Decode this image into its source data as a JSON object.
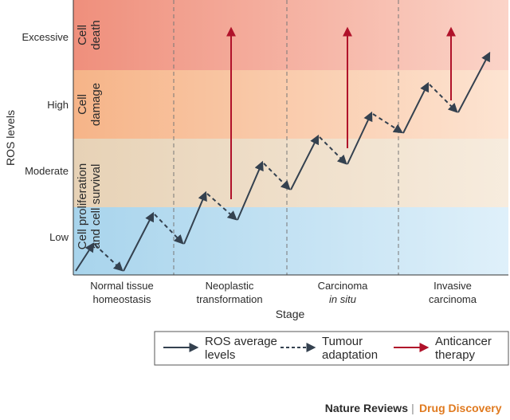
{
  "axis": {
    "ylabel": "ROS levels",
    "xlabel": "Stage"
  },
  "levels": [
    "Excessive",
    "High",
    "Moderate",
    "Low"
  ],
  "zones": {
    "death": [
      "Cell",
      "death"
    ],
    "damage": [
      "Cell",
      "damage"
    ],
    "survival": [
      "Cell proliferation",
      "and cell survival"
    ]
  },
  "stages": [
    {
      "line1": "Normal tissue",
      "line2": "homeostasis",
      "italic2": false
    },
    {
      "line1": "Neoplastic",
      "line2": "transformation",
      "italic2": false
    },
    {
      "line1": "Carcinoma",
      "line2": "in situ",
      "italic2": true
    },
    {
      "line1": "Invasive",
      "line2": "carcinoma",
      "italic2": false
    }
  ],
  "legend": [
    {
      "key": "ros",
      "line1": "ROS average",
      "line2": "levels"
    },
    {
      "key": "adapt",
      "line1": "Tumour",
      "line2": "adaptation"
    },
    {
      "key": "therapy",
      "line1": "Anticancer",
      "line2": "therapy"
    }
  ],
  "footer": {
    "journal": "Nature Reviews",
    "separator": "|",
    "section": "Drug Discovery"
  },
  "colors": {
    "excessive_band": "#f4a08e",
    "high_band": "#f8c9a6",
    "moderate_band": "#eddbc4",
    "low_band": "#b8dcef",
    "ros_arrow": "#34414f",
    "therapy_arrow": "#b0122a",
    "footer_accent": "#e07a1f"
  }
}
